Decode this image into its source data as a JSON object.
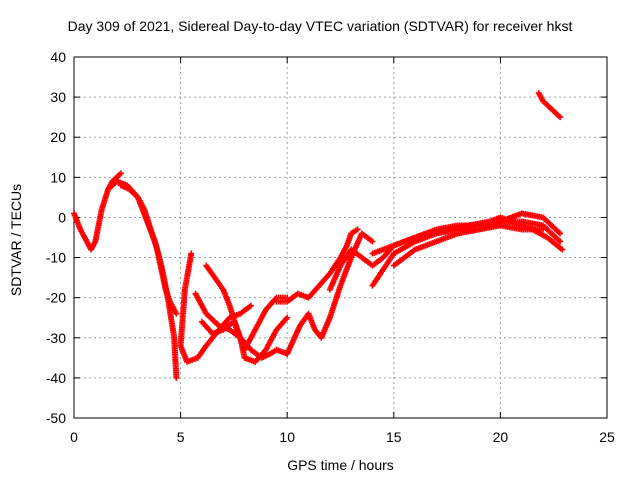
{
  "chart_data": {
    "type": "scatter",
    "title": "Day 309 of 2021, Sidereal Day-to-day VTEC variation (SDTVAR) for receiver hkst",
    "xlabel": "GPS time / hours",
    "ylabel": "SDTVAR / TECUs",
    "xlim": [
      0,
      25
    ],
    "ylim": [
      -50,
      40
    ],
    "xticks": [
      0,
      5,
      10,
      15,
      20,
      25
    ],
    "yticks": [
      -50,
      -40,
      -30,
      -20,
      -10,
      0,
      10,
      20,
      30,
      40
    ],
    "grid": true,
    "marker": "plus",
    "color": "#ff0000",
    "series": [
      {
        "name": "satellite-track-1",
        "x": [
          0.0,
          0.3,
          0.6,
          0.8,
          1.0,
          1.3,
          1.6,
          1.8,
          2.0,
          2.2
        ],
        "y": [
          1,
          -3,
          -6,
          -8,
          -6,
          2,
          7,
          9,
          10,
          11
        ]
      },
      {
        "name": "satellite-track-2",
        "x": [
          1.6,
          2.0,
          2.5,
          3.0,
          3.5,
          3.8,
          4.1,
          4.4,
          4.7,
          4.8
        ],
        "y": [
          7,
          9,
          8,
          5,
          -2,
          -6,
          -12,
          -20,
          -30,
          -40
        ]
      },
      {
        "name": "satellite-track-3",
        "x": [
          2.2,
          2.6,
          3.0,
          3.3,
          3.6,
          3.9,
          4.1,
          4.3,
          4.5,
          4.8
        ],
        "y": [
          8,
          7,
          5,
          2,
          -3,
          -8,
          -13,
          -18,
          -21,
          -24
        ]
      },
      {
        "name": "satellite-track-4",
        "x": [
          5.5,
          5.2,
          5.0,
          5.3,
          5.8,
          6.2,
          6.8,
          7.3,
          7.8,
          8.3
        ],
        "y": [
          -9,
          -18,
          -32,
          -36,
          -35,
          -32,
          -28,
          -25,
          -24,
          -22
        ]
      },
      {
        "name": "satellite-track-5",
        "x": [
          5.7,
          6.2,
          6.8,
          7.3,
          7.8,
          8.3,
          8.8,
          9.2,
          9.5,
          10.0
        ],
        "y": [
          -19,
          -24,
          -27,
          -28,
          -30,
          -33,
          -35,
          -34,
          -33,
          -34
        ]
      },
      {
        "name": "satellite-track-6",
        "x": [
          6.0,
          6.5,
          7.0,
          7.5,
          7.8,
          8.0,
          8.5,
          9.0,
          9.5,
          10.0
        ],
        "y": [
          -26,
          -29,
          -28,
          -26,
          -30,
          -35,
          -36,
          -33,
          -28,
          -25
        ]
      },
      {
        "name": "satellite-track-7",
        "x": [
          6.2,
          6.6,
          7.0,
          7.3,
          7.6,
          8.0,
          8.5,
          9.0,
          9.5,
          10.0
        ],
        "y": [
          -12,
          -15,
          -18,
          -22,
          -27,
          -33,
          -28,
          -23,
          -20,
          -20
        ]
      },
      {
        "name": "satellite-track-8",
        "x": [
          9.5,
          10.0,
          10.5,
          11.0,
          11.5,
          12.0,
          12.5,
          12.8,
          13.0,
          13.3
        ],
        "y": [
          -21,
          -21,
          -19,
          -20,
          -17,
          -14,
          -10,
          -7,
          -4,
          -3
        ]
      },
      {
        "name": "satellite-track-9",
        "x": [
          10.0,
          10.6,
          11.0,
          11.3,
          11.6,
          12.0,
          12.5,
          13.0,
          13.5,
          14.0
        ],
        "y": [
          -34,
          -27,
          -24,
          -28,
          -30,
          -25,
          -17,
          -10,
          -4,
          -6
        ]
      },
      {
        "name": "satellite-track-10",
        "x": [
          12.0,
          12.5,
          13.0,
          13.5,
          14.0,
          14.5,
          15.0,
          15.5,
          16.0,
          16.5
        ],
        "y": [
          -18,
          -12,
          -8,
          -10,
          -12,
          -10,
          -7,
          -6,
          -5,
          -4
        ]
      },
      {
        "name": "satellite-track-11",
        "x": [
          14.0,
          14.5,
          15.0,
          16.0,
          17.0,
          18.0,
          19.0,
          20.0,
          21.0,
          22.0
        ],
        "y": [
          -17,
          -13,
          -9,
          -6,
          -4,
          -3,
          -3,
          -2,
          -3,
          -3
        ]
      },
      {
        "name": "satellite-track-12",
        "x": [
          14.0,
          15.0,
          16.0,
          17.0,
          18.0,
          19.0,
          20.0,
          21.0,
          22.0,
          22.8
        ],
        "y": [
          -9,
          -7,
          -5,
          -3,
          -2,
          -2,
          -1,
          -1,
          -2,
          -6
        ]
      },
      {
        "name": "satellite-track-13",
        "x": [
          15.0,
          16.0,
          17.0,
          18.0,
          19.0,
          19.5,
          20.0,
          21.0,
          22.0,
          22.8
        ],
        "y": [
          -12,
          -8,
          -6,
          -4,
          -3,
          -2,
          -1,
          1,
          0,
          -4
        ]
      },
      {
        "name": "satellite-track-14",
        "x": [
          16.5,
          17.5,
          18.5,
          19.5,
          20.0,
          20.5,
          21.0,
          21.5,
          22.2,
          22.9
        ],
        "y": [
          -4,
          -3,
          -2,
          -1,
          0,
          -1,
          -2,
          -3,
          -5,
          -8
        ]
      },
      {
        "name": "satellite-track-15",
        "x": [
          21.8,
          22.0,
          22.2,
          22.4,
          22.6,
          22.8
        ],
        "y": [
          31,
          29,
          28,
          27,
          26,
          25
        ]
      }
    ]
  }
}
